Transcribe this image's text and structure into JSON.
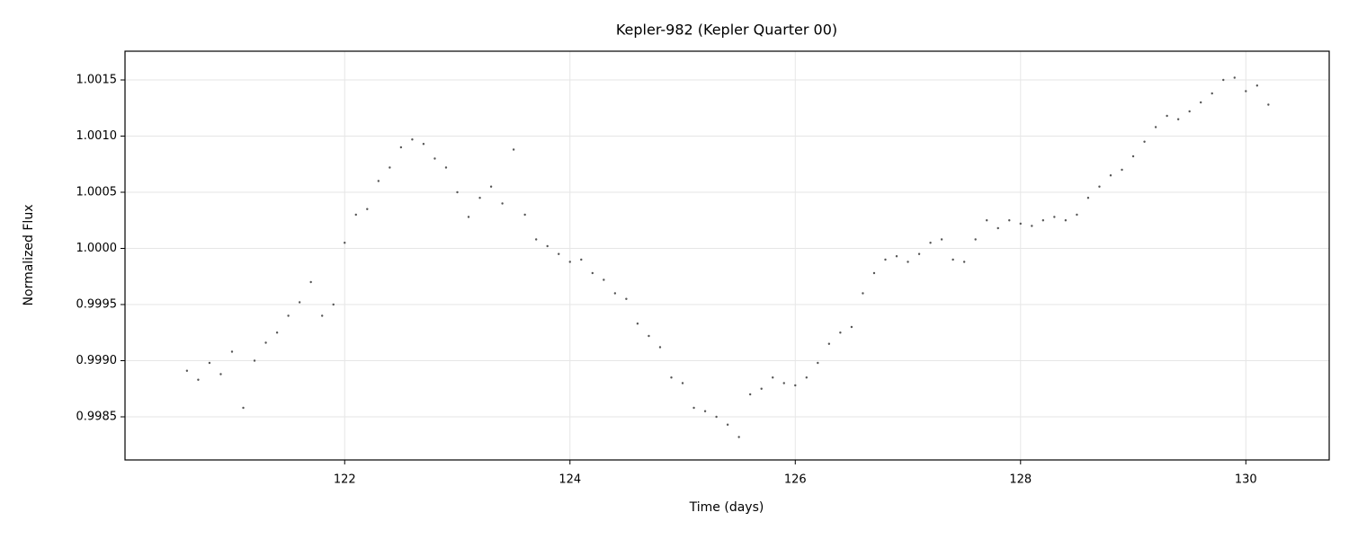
{
  "chart_data": {
    "type": "scatter",
    "title": "Kepler-982 (Kepler Quarter 00)",
    "x_label": "Time (days)",
    "y_label": "Normalized Flux",
    "color": "#555555",
    "grid": true,
    "xlim": [
      120.05,
      130.74
    ],
    "ylim": [
      0.998116,
      1.001756
    ],
    "xticks": [
      122,
      124,
      126,
      128,
      130
    ],
    "yticks": [
      0.9985,
      {
        "value": 0.999,
        "label": "0.9990"
      },
      0.9995,
      {
        "value": 1.0,
        "label": "1.0000"
      },
      1.0005,
      {
        "value": 1.001,
        "label": "1.0010"
      },
      1.0015
    ],
    "x": [
      120.6,
      120.7,
      120.8,
      120.9,
      121.0,
      121.1,
      121.2,
      121.3,
      121.4,
      121.5,
      121.6,
      121.7,
      121.8,
      121.9,
      122.0,
      122.1,
      122.2,
      122.3,
      122.4,
      122.5,
      122.6,
      122.7,
      122.8,
      122.9,
      123.0,
      123.1,
      123.2,
      123.3,
      123.4,
      123.5,
      123.6,
      123.7,
      123.8,
      123.9,
      124.0,
      124.1,
      124.2,
      124.3,
      124.4,
      124.5,
      124.6,
      124.7,
      124.8,
      124.9,
      125.0,
      125.1,
      125.2,
      125.3,
      125.4,
      125.5,
      125.6,
      125.7,
      125.8,
      125.9,
      126.0,
      126.1,
      126.2,
      126.3,
      126.4,
      126.5,
      126.6,
      126.7,
      126.8,
      126.9,
      127.0,
      127.1,
      127.2,
      127.3,
      127.4,
      127.5,
      127.6,
      127.7,
      127.8,
      127.9,
      128.0,
      128.1,
      128.2,
      128.3,
      128.4,
      128.5,
      128.6,
      128.7,
      128.8,
      128.9,
      129.0,
      129.1,
      129.2,
      129.3,
      129.4,
      129.5,
      129.6,
      129.7,
      129.8,
      129.9,
      130.0,
      130.1,
      130.2
    ],
    "values": [
      0.99891,
      0.99883,
      0.99898,
      0.99888,
      0.99908,
      0.99858,
      0.999,
      0.99916,
      0.99925,
      0.9994,
      0.99952,
      0.9997,
      0.9994,
      0.9995,
      1.00005,
      1.0003,
      1.00035,
      1.0006,
      1.00072,
      1.0009,
      1.00097,
      1.00093,
      1.0008,
      1.00072,
      1.0005,
      1.00028,
      1.00045,
      1.00055,
      1.0004,
      1.00088,
      1.0003,
      1.00008,
      1.00002,
      0.99995,
      0.99988,
      0.9999,
      0.99978,
      0.99972,
      0.9996,
      0.99955,
      0.99933,
      0.99922,
      0.99912,
      0.99885,
      0.9988,
      0.99858,
      0.99855,
      0.9985,
      0.99843,
      0.99832,
      0.9987,
      0.99875,
      0.99885,
      0.9988,
      0.99878,
      0.99885,
      0.99898,
      0.99915,
      0.99925,
      0.9993,
      0.9996,
      0.99978,
      0.9999,
      0.99993,
      0.99988,
      0.99995,
      1.00005,
      1.00008,
      0.9999,
      0.99988,
      1.00008,
      1.00025,
      1.00018,
      1.00025,
      1.00022,
      1.0002,
      1.00025,
      1.00028,
      1.00025,
      1.0003,
      1.00045,
      1.00055,
      1.00065,
      1.0007,
      1.00082,
      1.00095,
      1.00108,
      1.00118,
      1.00115,
      1.00122,
      1.0013,
      1.00138,
      1.0015,
      1.00152,
      1.0014,
      1.00145,
      1.00128
    ]
  }
}
